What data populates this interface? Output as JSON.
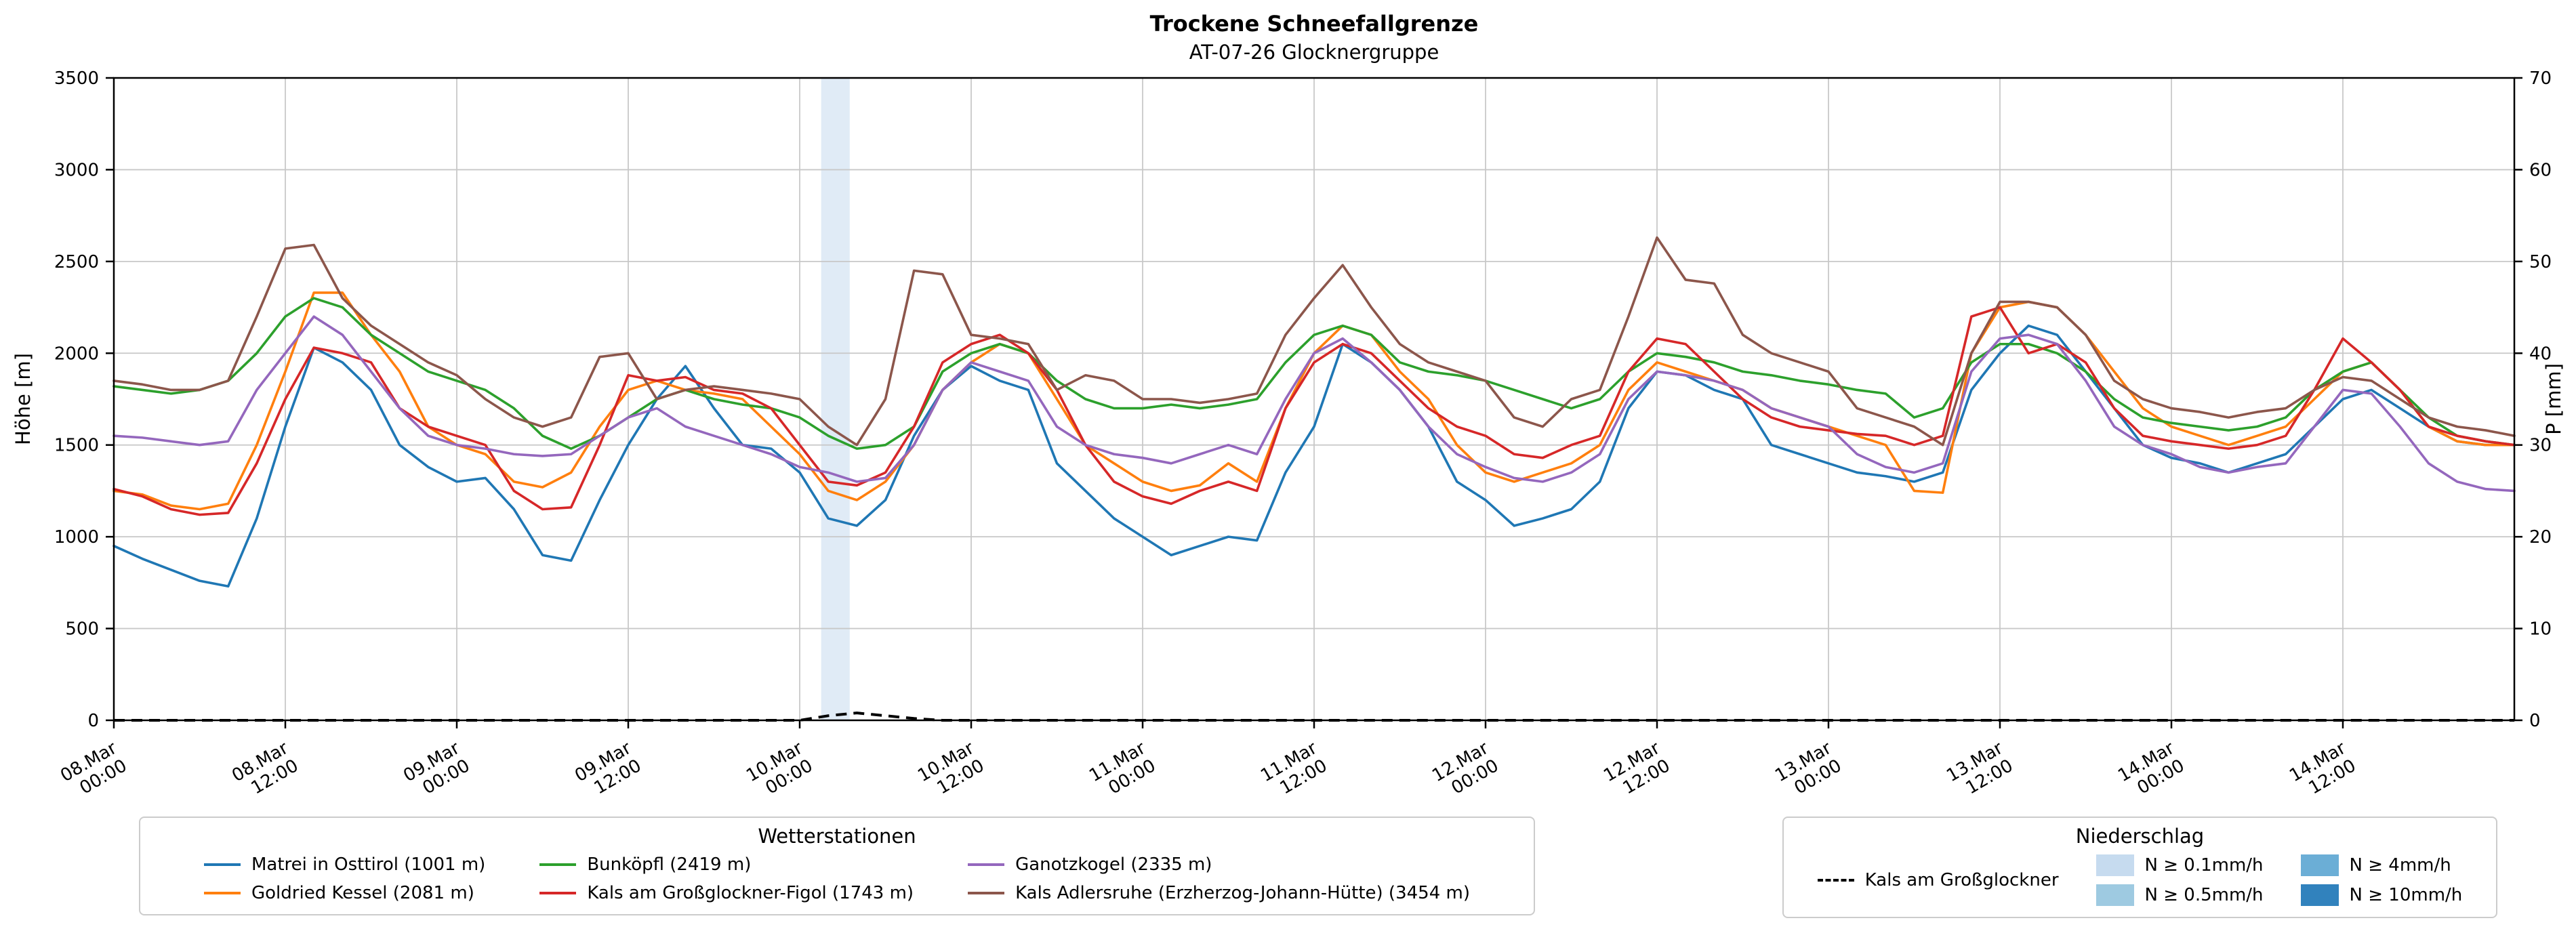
{
  "chart_data": {
    "type": "line",
    "title": "Trockene Schneefallgrenze",
    "subtitle": "AT-07-26 Glocknergruppe",
    "ylabel_left": "Höhe [m]",
    "ylabel_right": "P [mm]",
    "ylim_left": [
      0,
      3500
    ],
    "yticks_left": [
      0,
      500,
      1000,
      1500,
      2000,
      2500,
      3000,
      3500
    ],
    "ylim_right": [
      0,
      70
    ],
    "yticks_right": [
      0,
      10,
      20,
      30,
      40,
      50,
      60,
      70
    ],
    "grid": true,
    "x_hours_range": [
      0,
      168
    ],
    "x_step_hours": 2,
    "x_ticks": [
      {
        "h": 0,
        "date": "08.Mar",
        "time": "00:00"
      },
      {
        "h": 12,
        "date": "08.Mar",
        "time": "12:00"
      },
      {
        "h": 24,
        "date": "09.Mar",
        "time": "00:00"
      },
      {
        "h": 36,
        "date": "09.Mar",
        "time": "12:00"
      },
      {
        "h": 48,
        "date": "10.Mar",
        "time": "00:00"
      },
      {
        "h": 60,
        "date": "10.Mar",
        "time": "12:00"
      },
      {
        "h": 72,
        "date": "11.Mar",
        "time": "00:00"
      },
      {
        "h": 84,
        "date": "11.Mar",
        "time": "12:00"
      },
      {
        "h": 96,
        "date": "12.Mar",
        "time": "00:00"
      },
      {
        "h": 108,
        "date": "12.Mar",
        "time": "12:00"
      },
      {
        "h": 120,
        "date": "13.Mar",
        "time": "00:00"
      },
      {
        "h": 132,
        "date": "13.Mar",
        "time": "12:00"
      },
      {
        "h": 144,
        "date": "14.Mar",
        "time": "00:00"
      },
      {
        "h": 156,
        "date": "14.Mar",
        "time": "12:00"
      }
    ],
    "series": [
      {
        "name": "Matrei in Osttirol (1001 m)",
        "color": "#1f77b4",
        "values": [
          950,
          880,
          820,
          760,
          730,
          1100,
          1600,
          2030,
          1950,
          1800,
          1500,
          1380,
          1300,
          1320,
          1150,
          900,
          870,
          1200,
          1500,
          1750,
          1930,
          1700,
          1500,
          1480,
          1350,
          1100,
          1060,
          1200,
          1550,
          1800,
          1930,
          1850,
          1800,
          1400,
          1250,
          1100,
          1000,
          900,
          950,
          1000,
          980,
          1350,
          1600,
          2050,
          1950,
          1800,
          1600,
          1300,
          1200,
          1060,
          1100,
          1150,
          1300,
          1700,
          1900,
          1880,
          1800,
          1750,
          1500,
          1450,
          1400,
          1350,
          1330,
          1300,
          1350,
          1800,
          2000,
          2150,
          2100,
          1900,
          1700,
          1500,
          1430,
          1400,
          1350,
          1400,
          1450,
          1600,
          1750,
          1800,
          1700,
          1600,
          1520,
          1500,
          1500
        ]
      },
      {
        "name": "Goldried Kessel (2081 m)",
        "color": "#ff7f0e",
        "values": [
          1250,
          1230,
          1170,
          1150,
          1180,
          1500,
          1900,
          2330,
          2330,
          2100,
          1900,
          1600,
          1500,
          1450,
          1300,
          1270,
          1350,
          1600,
          1800,
          1850,
          1800,
          1780,
          1750,
          1600,
          1450,
          1250,
          1200,
          1300,
          1500,
          1800,
          1950,
          2050,
          2000,
          1750,
          1500,
          1400,
          1300,
          1250,
          1280,
          1400,
          1300,
          1700,
          2000,
          2150,
          2100,
          1900,
          1750,
          1500,
          1350,
          1300,
          1350,
          1400,
          1500,
          1800,
          1950,
          1900,
          1850,
          1800,
          1700,
          1650,
          1600,
          1550,
          1500,
          1250,
          1240,
          2000,
          2250,
          2280,
          2250,
          2100,
          1900,
          1700,
          1600,
          1550,
          1500,
          1550,
          1600,
          1750,
          1900,
          1950,
          1800,
          1600,
          1520,
          1500,
          1500
        ]
      },
      {
        "name": "Bunköpfl (2419 m)",
        "color": "#2ca02c",
        "values": [
          1820,
          1800,
          1780,
          1800,
          1850,
          2000,
          2200,
          2300,
          2250,
          2100,
          2000,
          1900,
          1850,
          1800,
          1700,
          1550,
          1480,
          1550,
          1650,
          1750,
          1800,
          1750,
          1720,
          1700,
          1650,
          1550,
          1480,
          1500,
          1600,
          1900,
          2000,
          2050,
          2000,
          1850,
          1750,
          1700,
          1700,
          1720,
          1700,
          1720,
          1750,
          1950,
          2100,
          2150,
          2100,
          1950,
          1900,
          1880,
          1850,
          1800,
          1750,
          1700,
          1750,
          1900,
          2000,
          1980,
          1950,
          1900,
          1880,
          1850,
          1830,
          1800,
          1780,
          1650,
          1700,
          1950,
          2050,
          2050,
          2000,
          1900,
          1750,
          1650,
          1620,
          1600,
          1580,
          1600,
          1650,
          1800,
          1900,
          1950,
          1800,
          1650,
          1550,
          1520,
          1500
        ]
      },
      {
        "name": "Kals am Großglockner-Figol (1743 m)",
        "color": "#d62728",
        "values": [
          1260,
          1220,
          1150,
          1120,
          1130,
          1400,
          1750,
          2030,
          2000,
          1950,
          1700,
          1600,
          1550,
          1500,
          1250,
          1150,
          1160,
          1500,
          1880,
          1850,
          1870,
          1800,
          1780,
          1700,
          1500,
          1300,
          1280,
          1350,
          1600,
          1950,
          2050,
          2100,
          2000,
          1800,
          1500,
          1300,
          1220,
          1180,
          1250,
          1300,
          1250,
          1700,
          1950,
          2050,
          2000,
          1850,
          1700,
          1600,
          1550,
          1450,
          1430,
          1500,
          1550,
          1900,
          2080,
          2050,
          1900,
          1750,
          1650,
          1600,
          1580,
          1560,
          1550,
          1500,
          1550,
          2200,
          2250,
          2000,
          2050,
          1950,
          1700,
          1550,
          1520,
          1500,
          1480,
          1500,
          1550,
          1800,
          2080,
          1950,
          1800,
          1600,
          1550,
          1520,
          1500
        ]
      },
      {
        "name": "Ganotzkogel (2335 m)",
        "color": "#9467bd",
        "values": [
          1550,
          1540,
          1520,
          1500,
          1520,
          1800,
          2000,
          2200,
          2100,
          1900,
          1700,
          1550,
          1500,
          1480,
          1450,
          1440,
          1450,
          1550,
          1650,
          1700,
          1600,
          1550,
          1500,
          1450,
          1380,
          1350,
          1300,
          1320,
          1500,
          1800,
          1950,
          1900,
          1850,
          1600,
          1500,
          1450,
          1430,
          1400,
          1450,
          1500,
          1450,
          1750,
          2000,
          2080,
          1950,
          1800,
          1600,
          1450,
          1380,
          1320,
          1300,
          1350,
          1450,
          1750,
          1900,
          1880,
          1850,
          1800,
          1700,
          1650,
          1600,
          1450,
          1380,
          1350,
          1400,
          1900,
          2080,
          2100,
          2050,
          1850,
          1600,
          1500,
          1450,
          1380,
          1350,
          1380,
          1400,
          1600,
          1800,
          1780,
          1600,
          1400,
          1300,
          1260,
          1250
        ]
      },
      {
        "name": "Kals Adlersruhe (Erzherzog-Johann-Hütte) (3454 m)",
        "color": "#8c564b",
        "values": [
          1850,
          1830,
          1800,
          1800,
          1850,
          2200,
          2570,
          2590,
          2300,
          2150,
          2050,
          1950,
          1880,
          1750,
          1650,
          1600,
          1650,
          1980,
          2000,
          1750,
          1800,
          1820,
          1800,
          1780,
          1750,
          1600,
          1500,
          1750,
          2450,
          2430,
          2100,
          2080,
          2050,
          1800,
          1880,
          1850,
          1750,
          1750,
          1730,
          1750,
          1780,
          2100,
          2300,
          2480,
          2250,
          2050,
          1950,
          1900,
          1850,
          1650,
          1600,
          1750,
          1800,
          2200,
          2630,
          2400,
          2380,
          2100,
          2000,
          1950,
          1900,
          1700,
          1650,
          1600,
          1500,
          2000,
          2280,
          2280,
          2250,
          2100,
          1850,
          1750,
          1700,
          1680,
          1650,
          1680,
          1700,
          1800,
          1870,
          1850,
          1750,
          1650,
          1600,
          1580,
          1550
        ]
      }
    ],
    "precip_line": {
      "name": "Kals am Großglockner",
      "color": "#000000",
      "style": "dashed",
      "axis": "right",
      "values": [
        0,
        0,
        0,
        0,
        0,
        0,
        0,
        0,
        0,
        0,
        0,
        0,
        0,
        0,
        0,
        0,
        0,
        0,
        0,
        0,
        0,
        0,
        0,
        0,
        0,
        0.5,
        0.8,
        0.5,
        0.2,
        0,
        0,
        0,
        0,
        0,
        0,
        0,
        0,
        0,
        0,
        0,
        0,
        0,
        0,
        0,
        0,
        0,
        0,
        0,
        0,
        0,
        0,
        0,
        0,
        0,
        0,
        0,
        0,
        0,
        0,
        0,
        0,
        0,
        0,
        0,
        0,
        0,
        0,
        0,
        0,
        0,
        0,
        0,
        0,
        0,
        0,
        0,
        0,
        0,
        0,
        0,
        0,
        0,
        0,
        0,
        0
      ]
    },
    "precip_bands": [
      {
        "start_h": 49.5,
        "end_h": 51.5,
        "level": "N ≥ 0.1mm/h",
        "color": "#c6dbef"
      }
    ],
    "legend_stations_title": "Wetterstationen",
    "legend_precip_title": "Niederschlag",
    "precip_legend_patches": [
      {
        "label": "N ≥ 0.1mm/h",
        "color": "#c6dbef"
      },
      {
        "label": "N ≥ 0.5mm/h",
        "color": "#9ecae1"
      },
      {
        "label": "N ≥ 4mm/h",
        "color": "#6baed6"
      },
      {
        "label": "N ≥ 10mm/h",
        "color": "#3182bd"
      }
    ]
  }
}
